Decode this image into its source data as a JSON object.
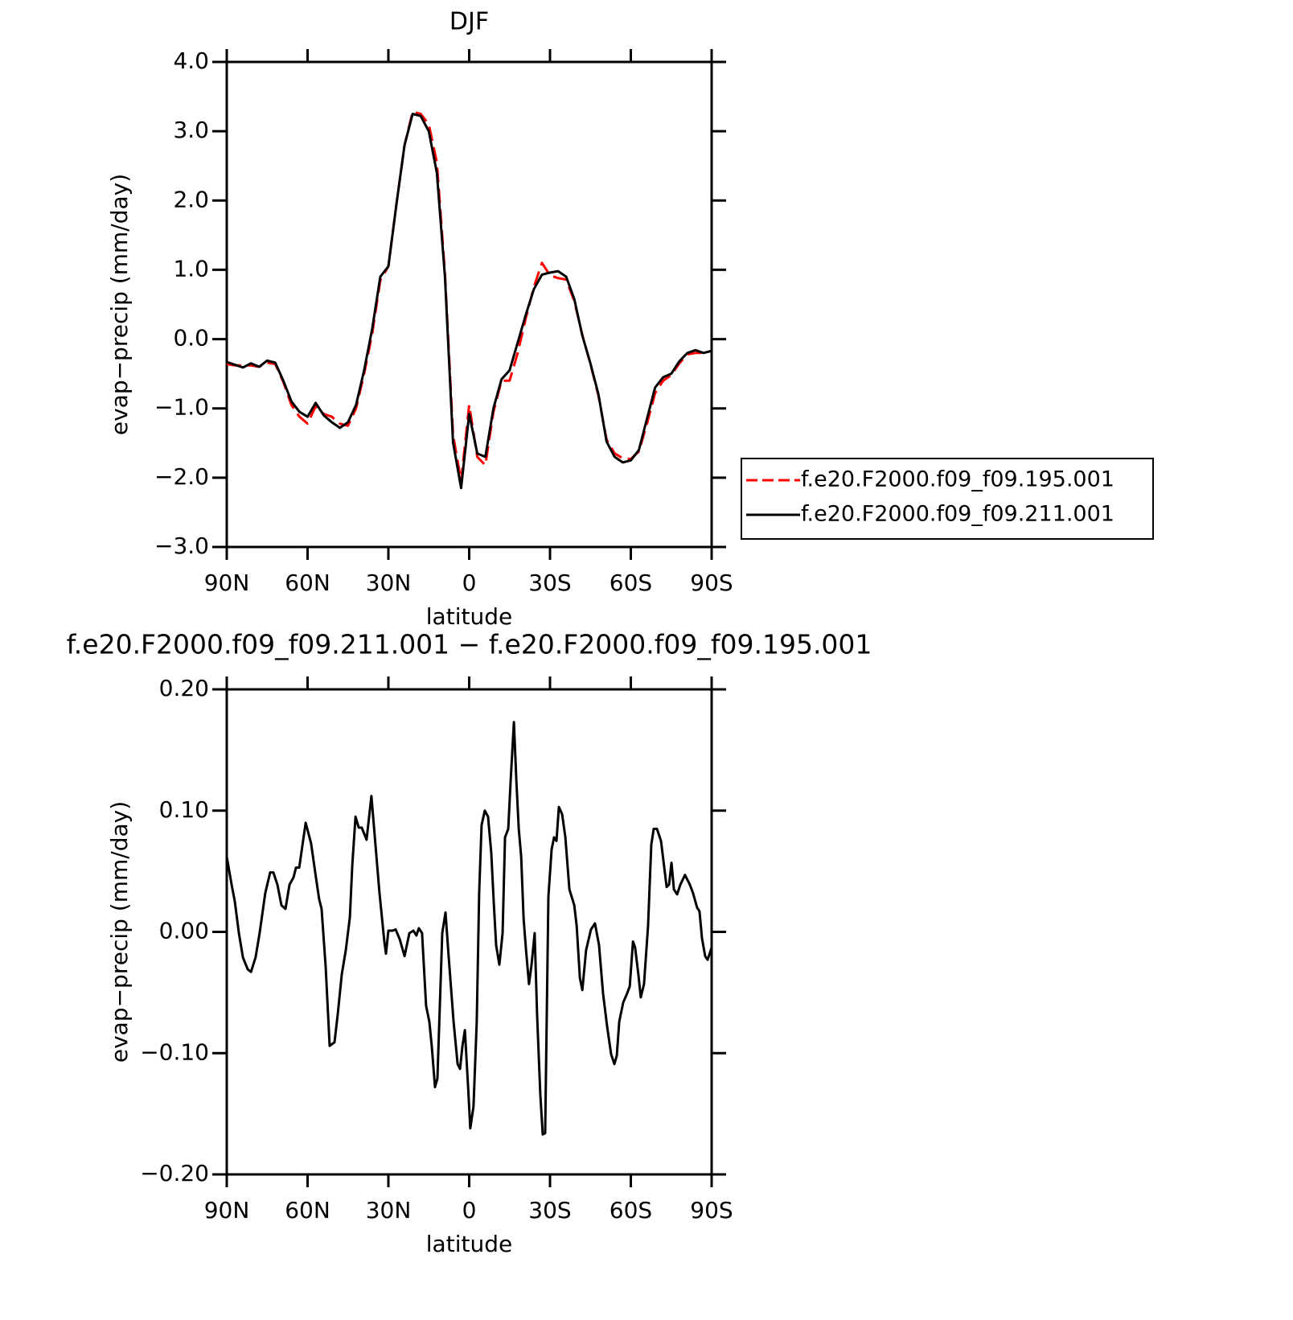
{
  "chart_data": [
    {
      "type": "line",
      "title": "DJF",
      "x_label": "latitude",
      "y_label": "evap−precip (mm/day)",
      "x": [
        90,
        87,
        84,
        81,
        78,
        75,
        72,
        69,
        66,
        63,
        60,
        57,
        54,
        51,
        48,
        45,
        42,
        39,
        36,
        33,
        30,
        27,
        24,
        21,
        18,
        15,
        12,
        9,
        6,
        3,
        0,
        -3,
        -6,
        -9,
        -12,
        -15,
        -18,
        -21,
        -24,
        -27,
        -30,
        -33,
        -36,
        -39,
        -42,
        -45,
        -48,
        -51,
        -54,
        -57,
        -60,
        -63,
        -66,
        -69,
        -72,
        -75,
        -78,
        -81,
        -84,
        -87,
        -90
      ],
      "series": [
        {
          "name": "f.e20.F2000.f09_f09.195.001",
          "color": "#ff0000",
          "line_style": "dashed",
          "values": [
            -0.36,
            -0.38,
            -0.38,
            -0.38,
            -0.4,
            -0.34,
            -0.36,
            -0.62,
            -0.95,
            -1.12,
            -1.22,
            -0.97,
            -1.08,
            -1.12,
            -1.22,
            -1.25,
            -1.0,
            -0.5,
            0.08,
            0.85,
            1.05,
            1.95,
            2.8,
            3.28,
            3.25,
            3.1,
            2.55,
            0.95,
            -1.38,
            -2.05,
            -0.95,
            -1.7,
            -1.82,
            -1.05,
            -0.6,
            -0.6,
            -0.2,
            0.3,
            0.75,
            1.1,
            0.92,
            0.88,
            0.86,
            0.55,
            0.06,
            -0.36,
            -0.82,
            -1.45,
            -1.65,
            -1.72,
            -1.73,
            -1.62,
            -1.22,
            -0.78,
            -0.6,
            -0.52,
            -0.35,
            -0.22,
            -0.2,
            -0.2,
            -0.17
          ]
        },
        {
          "name": "f.e20.F2000.f09_f09.211.001",
          "color": "#000000",
          "line_style": "solid",
          "values": [
            -0.33,
            -0.37,
            -0.41,
            -0.35,
            -0.4,
            -0.31,
            -0.34,
            -0.6,
            -0.9,
            -1.05,
            -1.12,
            -0.92,
            -1.1,
            -1.2,
            -1.28,
            -1.2,
            -0.95,
            -0.45,
            0.15,
            0.9,
            1.05,
            1.95,
            2.8,
            3.25,
            3.22,
            3.0,
            2.4,
            0.9,
            -1.49,
            -2.15,
            -1.08,
            -1.65,
            -1.7,
            -1.0,
            -0.58,
            -0.45,
            -0.05,
            0.35,
            0.72,
            0.93,
            0.96,
            0.98,
            0.9,
            0.58,
            0.05,
            -0.35,
            -0.8,
            -1.48,
            -1.7,
            -1.78,
            -1.75,
            -1.6,
            -1.15,
            -0.7,
            -0.55,
            -0.5,
            -0.32,
            -0.2,
            -0.16,
            -0.2,
            -0.17
          ]
        }
      ],
      "xlim": [
        90,
        -90
      ],
      "xticks": [
        {
          "value": 90,
          "label": "90N"
        },
        {
          "value": 60,
          "label": "60N"
        },
        {
          "value": 30,
          "label": "30N"
        },
        0,
        {
          "value": -30,
          "label": "30S"
        },
        {
          "value": -60,
          "label": "60S"
        },
        {
          "value": -90,
          "label": "90S"
        }
      ],
      "ylim": [
        -3,
        4
      ],
      "yticks": [
        {
          "value": -3,
          "label": "−3.0"
        },
        {
          "value": -2,
          "label": "−2.0"
        },
        {
          "value": -1,
          "label": "−1.0"
        },
        {
          "value": 0,
          "label": "0.0"
        },
        {
          "value": 1,
          "label": "1.0"
        },
        {
          "value": 2,
          "label": "2.0"
        },
        {
          "value": 3,
          "label": "3.0"
        },
        {
          "value": 4,
          "label": "4.0"
        }
      ],
      "legend": "outside-right"
    },
    {
      "type": "line",
      "title": "f.e20.F2000.f09_f09.211.001 − f.e20.F2000.f09_f09.195.001",
      "x_label": "latitude",
      "y_label": "evap−precip (mm/day)",
      "x": [
        90.0,
        88.2,
        87.0,
        85.5,
        84.0,
        82.2,
        81.0,
        79.3,
        77.8,
        75.7,
        73.9,
        72.7,
        71.2,
        69.7,
        68.2,
        66.7,
        65.2,
        64.3,
        63.1,
        60.7,
        58.7,
        56.9,
        55.7,
        54.8,
        53.3,
        51.8,
        50.0,
        48.8,
        47.3,
        45.8,
        44.3,
        43.4,
        42.2,
        41.0,
        39.9,
        38.1,
        36.3,
        34.8,
        33.3,
        31.5,
        30.9,
        30.0,
        28.5,
        27.3,
        25.8,
        24.0,
        22.2,
        20.7,
        19.6,
        18.7,
        17.5,
        16.0,
        14.8,
        13.9,
        12.7,
        11.8,
        10.0,
        8.8,
        7.6,
        5.8,
        4.3,
        3.4,
        2.5,
        1.6,
        0.4,
        -0.4,
        -1.6,
        -2.8,
        -3.7,
        -4.6,
        -5.8,
        -7.0,
        -8.2,
        -9.1,
        -10.0,
        -11.2,
        -12.4,
        -13.3,
        -14.5,
        -15.4,
        -16.6,
        -17.5,
        -18.4,
        -19.3,
        -20.2,
        -21.1,
        -22.2,
        -23.1,
        -24.3,
        -25.2,
        -26.4,
        -27.3,
        -28.2,
        -29.4,
        -30.6,
        -31.5,
        -32.4,
        -33.3,
        -34.5,
        -35.7,
        -37.2,
        -39.0,
        -39.9,
        -41.1,
        -42.0,
        -43.4,
        -45.2,
        -46.7,
        -48.2,
        -49.7,
        -51.2,
        -52.7,
        -53.9,
        -54.8,
        -55.7,
        -57.2,
        -58.4,
        -59.6,
        -60.8,
        -61.6,
        -62.8,
        -63.7,
        -64.9,
        -66.4,
        -67.6,
        -68.5,
        -69.7,
        -71.2,
        -73.3,
        -74.2,
        -75.1,
        -76.0,
        -77.2,
        -78.4,
        -80.1,
        -81.9,
        -83.1,
        -84.6,
        -85.5,
        -86.4,
        -87.6,
        -88.5,
        -90.0
      ],
      "series": [
        {
          "color": "#000000",
          "line_style": "solid",
          "values": [
            0.062,
            0.039,
            0.025,
            -0.001,
            -0.021,
            -0.031,
            -0.033,
            -0.021,
            -0.001,
            0.032,
            0.049,
            0.049,
            0.039,
            0.022,
            0.019,
            0.039,
            0.045,
            0.053,
            0.053,
            0.09,
            0.073,
            0.045,
            0.027,
            0.019,
            -0.028,
            -0.094,
            -0.091,
            -0.068,
            -0.035,
            -0.015,
            0.012,
            0.055,
            0.095,
            0.086,
            0.086,
            0.076,
            0.112,
            0.072,
            0.032,
            -0.008,
            -0.018,
            0.001,
            0.001,
            0.002,
            -0.006,
            -0.02,
            -0.001,
            0.001,
            -0.003,
            0.003,
            -0.001,
            -0.061,
            -0.074,
            -0.094,
            -0.128,
            -0.121,
            -0.001,
            0.016,
            -0.021,
            -0.074,
            -0.109,
            -0.113,
            -0.094,
            -0.081,
            -0.128,
            -0.162,
            -0.144,
            -0.074,
            0.032,
            0.088,
            0.1,
            0.095,
            0.065,
            0.025,
            -0.011,
            -0.027,
            -0.001,
            0.078,
            0.085,
            0.125,
            0.173,
            0.125,
            0.085,
            0.062,
            0.011,
            -0.015,
            -0.043,
            -0.028,
            -0.001,
            -0.068,
            -0.134,
            -0.167,
            -0.166,
            0.029,
            0.068,
            0.078,
            0.075,
            0.103,
            0.097,
            0.078,
            0.035,
            0.022,
            0.005,
            -0.038,
            -0.048,
            -0.015,
            0.002,
            0.007,
            -0.011,
            -0.051,
            -0.078,
            -0.101,
            -0.109,
            -0.102,
            -0.074,
            -0.058,
            -0.052,
            -0.045,
            -0.008,
            -0.013,
            -0.035,
            -0.054,
            -0.043,
            0.005,
            0.072,
            0.085,
            0.085,
            0.075,
            0.037,
            0.039,
            0.057,
            0.035,
            0.031,
            0.039,
            0.047,
            0.039,
            0.032,
            0.02,
            0.017,
            -0.005,
            -0.02,
            -0.023,
            -0.013
          ]
        }
      ],
      "xlim": [
        90,
        -90
      ],
      "xticks": [
        {
          "value": 90,
          "label": "90N"
        },
        {
          "value": 60,
          "label": "60N"
        },
        {
          "value": 30,
          "label": "30N"
        },
        0,
        {
          "value": -30,
          "label": "30S"
        },
        {
          "value": -60,
          "label": "60S"
        },
        {
          "value": -90,
          "label": "90S"
        }
      ],
      "ylim": [
        -0.2,
        0.2
      ],
      "yticks": [
        {
          "value": -0.2,
          "label": "−0.20"
        },
        {
          "value": -0.1,
          "label": "−0.10"
        },
        {
          "value": 0,
          "label": "0.00"
        },
        {
          "value": 0.1,
          "label": "0.10"
        },
        {
          "value": 0.2,
          "label": "0.20"
        }
      ]
    }
  ]
}
